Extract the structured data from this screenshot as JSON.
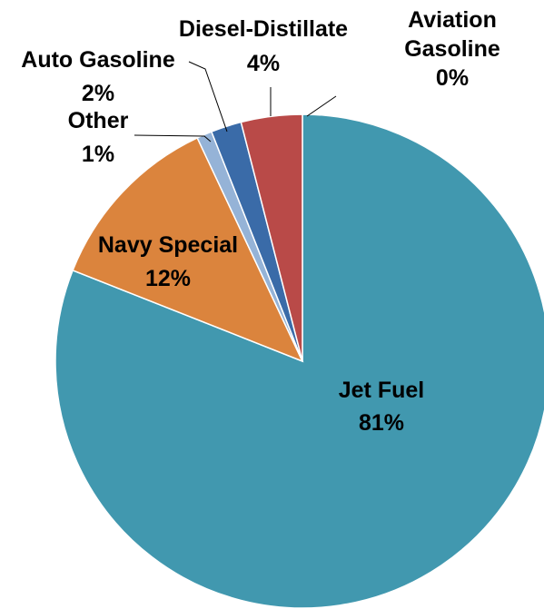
{
  "chart_data": {
    "type": "pie",
    "title": "",
    "slices": [
      {
        "label": "Aviation Gasoline",
        "label_lines": [
          "Aviation",
          "Gasoline"
        ],
        "value": 0,
        "display": "0%",
        "color": "#4f81bd"
      },
      {
        "label": "Jet Fuel",
        "label_lines": [
          "Jet Fuel"
        ],
        "value": 81,
        "display": "81%",
        "color": "#4198af"
      },
      {
        "label": "Navy Special",
        "label_lines": [
          "Navy Special"
        ],
        "value": 12,
        "display": "12%",
        "color": "#db843d"
      },
      {
        "label": "Other",
        "label_lines": [
          "Other"
        ],
        "value": 1,
        "display": "1%",
        "color": "#95b3d7"
      },
      {
        "label": "Auto Gasoline",
        "label_lines": [
          "Auto Gasoline"
        ],
        "value": 2,
        "display": "2%",
        "color": "#3a6ba8"
      },
      {
        "label": "Diesel-Distillate",
        "label_lines": [
          "Diesel-Distillate"
        ],
        "value": 4,
        "display": "4%",
        "color": "#b94a48"
      }
    ]
  }
}
